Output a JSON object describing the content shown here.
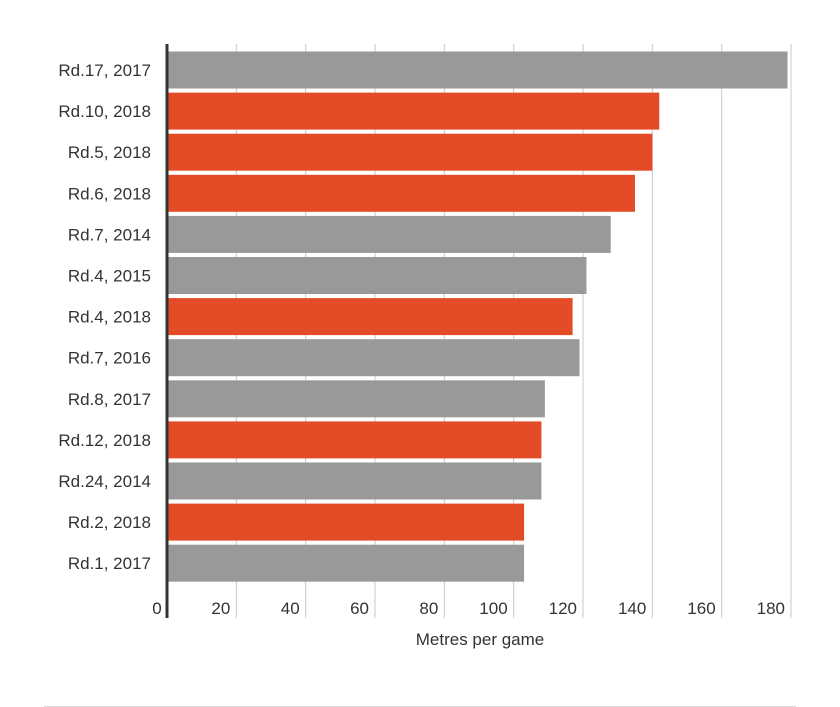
{
  "chart_data": {
    "type": "bar",
    "orientation": "horizontal",
    "title": "",
    "xlabel": "Metres per game",
    "ylabel": "",
    "xlim": [
      0,
      180
    ],
    "x_ticks": [
      "0",
      "20",
      "40",
      "60",
      "80",
      "100",
      "120",
      "140",
      "160",
      "180"
    ],
    "grid": "vertical",
    "legend": "none",
    "categories": [
      "Rd.17, 2017",
      "Rd.10, 2018",
      "Rd.5, 2018",
      "Rd.6, 2018",
      "Rd.7, 2014",
      "Rd.4, 2015",
      "Rd.4, 2018",
      "Rd.7, 2016",
      "Rd.8, 2017",
      "Rd.12, 2018",
      "Rd.24, 2014",
      "Rd.2, 2018",
      "Rd.1, 2017"
    ],
    "values": [
      179,
      142,
      140,
      135,
      128,
      121,
      117,
      119,
      109,
      108,
      108,
      103,
      103
    ],
    "highlight": [
      false,
      true,
      true,
      true,
      false,
      false,
      true,
      false,
      false,
      true,
      false,
      true,
      false
    ],
    "colors": {
      "default": "#999999",
      "highlight": "#e44c27",
      "grid": "#c8c8c8",
      "axis": "#333333"
    }
  }
}
